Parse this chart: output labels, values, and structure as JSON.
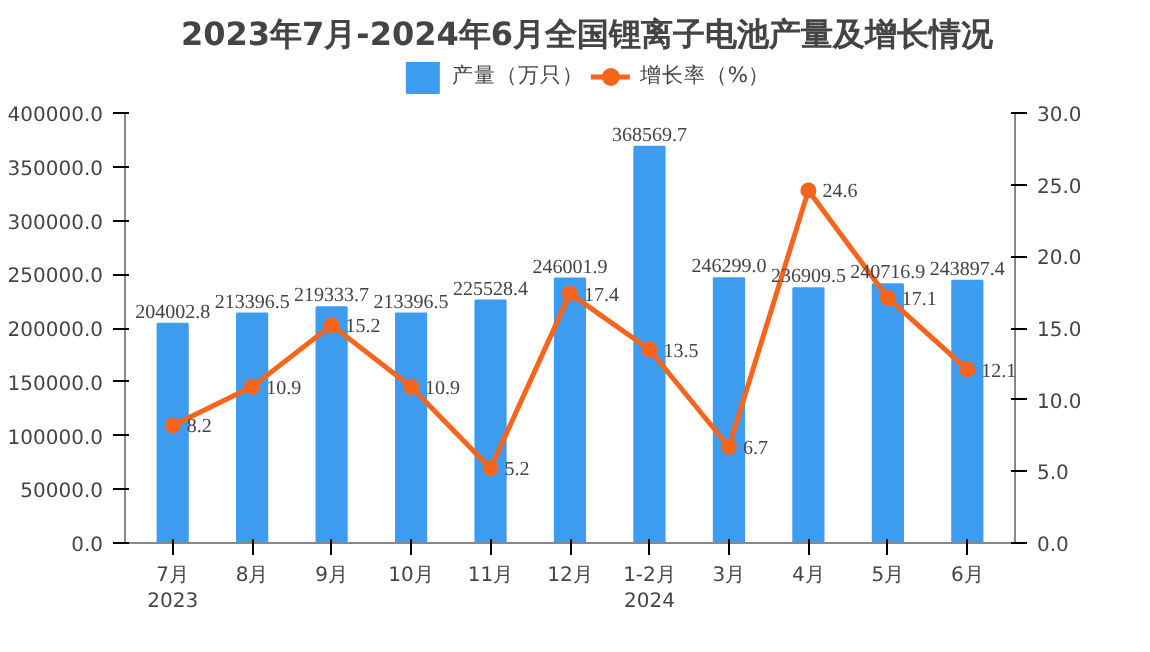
{
  "chart_data": {
    "type": "bar",
    "title": "2023年7月-2024年6月全国锂离子电池产量及增长情况",
    "categories": [
      "7月\n2023",
      "8月",
      "9月",
      "10月",
      "11月",
      "12月",
      "1-2月\n2024",
      "3月",
      "4月",
      "5月",
      "6月"
    ],
    "series": [
      {
        "name": "产量（万只）",
        "color": "#3e9cf0",
        "values": [
          204002.8,
          213396.5,
          219333.7,
          213396.5,
          225528.4,
          246001.9,
          368569.7,
          246299.0,
          236909.5,
          240716.9,
          243897.4
        ],
        "value_labels": [
          "204002.8",
          "213396.5",
          "219333.7",
          "213396.5",
          "225528.4",
          "246001.9",
          "368569.7",
          "246299.0",
          "236909.5",
          "240716.9",
          "243897.4"
        ]
      },
      {
        "name": "增长率（%）",
        "type": "line",
        "axis": "y2",
        "color": "#f7641b",
        "marker": "circle",
        "values": [
          8.2,
          10.9,
          15.2,
          10.9,
          5.2,
          17.4,
          13.5,
          6.7,
          24.6,
          17.1,
          12.1
        ],
        "value_labels": [
          "8.2",
          "10.9",
          "15.2",
          "10.9",
          "5.2",
          "17.4",
          "13.5",
          "6.7",
          "24.6",
          "17.1",
          "12.1"
        ]
      }
    ],
    "ylim": [
      0,
      400000
    ],
    "yticks": [
      {
        "value": 0,
        "label": "0.0"
      },
      {
        "value": 50000,
        "label": "50000.0"
      },
      {
        "value": 100000,
        "label": "100000.0"
      },
      {
        "value": 150000,
        "label": "150000.0"
      },
      {
        "value": 200000,
        "label": "200000.0"
      },
      {
        "value": 250000,
        "label": "250000.0"
      },
      {
        "value": 300000,
        "label": "300000.0"
      },
      {
        "value": 350000,
        "label": "350000.0"
      },
      {
        "value": 400000,
        "label": "400000.0"
      }
    ],
    "y2lim": [
      0,
      30
    ],
    "y2ticks": [
      {
        "value": 0,
        "label": "0.0"
      },
      {
        "value": 5,
        "label": "5.0"
      },
      {
        "value": 10,
        "label": "10.0"
      },
      {
        "value": 15,
        "label": "15.0"
      },
      {
        "value": 20,
        "label": "20.0"
      },
      {
        "value": 25,
        "label": "25.0"
      },
      {
        "value": 30,
        "label": "30.0"
      }
    ],
    "legend": "top",
    "grid": false
  }
}
